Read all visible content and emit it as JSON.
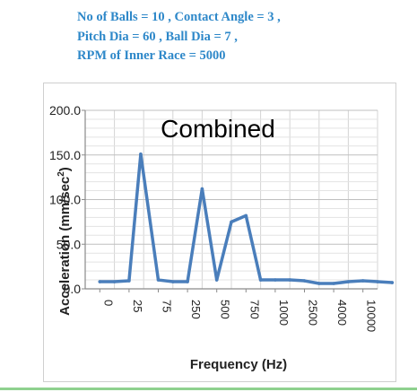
{
  "caption": {
    "line1": "No of Balls = 10 , Contact Angle = 3 ,",
    "line2": "Pitch Dia = 60 , Ball Dia = 7 ,",
    "line3": "RPM of Inner Race = 5000"
  },
  "chart_data": {
    "type": "line",
    "title": "Combined",
    "xlabel": "Frequency (Hz)",
    "ylabel": "Acceleration (mm/sec²)",
    "ylabel_main": "Acceleration (mm/sec",
    "ylabel_sup": "2",
    "ylabel_close": ")",
    "ylim": [
      0,
      200
    ],
    "y_ticks": [
      "0.0",
      "50.0",
      "100.0",
      "150.0",
      "200.0"
    ],
    "x_ticks": [
      "0",
      "25",
      "75",
      "250",
      "500",
      "750",
      "1000",
      "2500",
      "4000",
      "10000"
    ],
    "grid": true,
    "line_color": "#4a7ebb",
    "x_positions": [
      0,
      0.5,
      1,
      1.4,
      2,
      2.5,
      3,
      3.5,
      4,
      4.5,
      5,
      5.5,
      6,
      6.5,
      7,
      7.5,
      8,
      8.5,
      9,
      9.5,
      10
    ],
    "values": [
      8,
      8,
      9,
      151,
      10,
      8,
      8,
      112,
      10,
      75,
      82,
      10,
      10,
      10,
      9,
      6,
      6,
      8,
      9,
      8,
      7
    ]
  }
}
